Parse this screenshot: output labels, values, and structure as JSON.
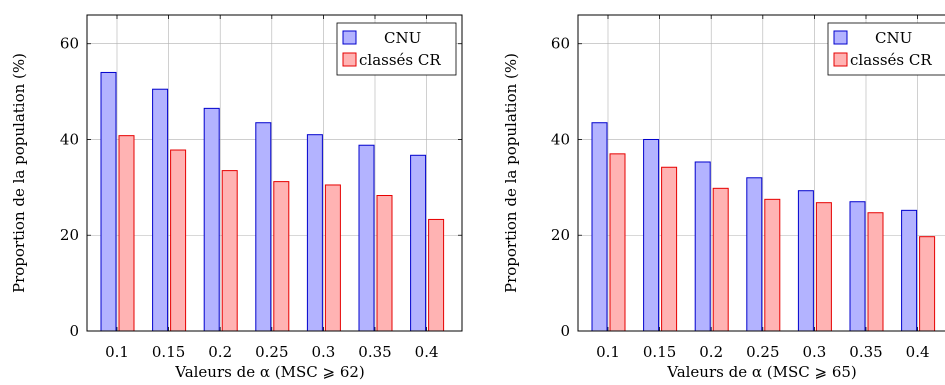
{
  "colors": {
    "cnu_fill": "#b3b3ff",
    "cnu_stroke": "#0000cc",
    "cr_fill": "#ffb3b3",
    "cr_stroke": "#e60000",
    "grid": "#b0b0b0"
  },
  "chart_data": [
    {
      "type": "bar",
      "categories": [
        "0.1",
        "0.15",
        "0.2",
        "0.25",
        "0.3",
        "0.35",
        "0.4"
      ],
      "series": [
        {
          "name": "CNU",
          "values": [
            54,
            50.5,
            46.5,
            43.5,
            41,
            38.8,
            36.7
          ]
        },
        {
          "name": "classés CR",
          "values": [
            40.8,
            37.8,
            33.5,
            31.2,
            30.5,
            28.3,
            23.3
          ]
        }
      ],
      "xlabel": "Valeurs de α (MSC ⩾ 62)",
      "ylabel": "Proportion de la population (%)",
      "ylim": [
        0,
        66
      ],
      "yticks": [
        0,
        20,
        40,
        60
      ],
      "grid": true,
      "legend": "top-right"
    },
    {
      "type": "bar",
      "categories": [
        "0.1",
        "0.15",
        "0.2",
        "0.25",
        "0.3",
        "0.35",
        "0.4"
      ],
      "series": [
        {
          "name": "CNU",
          "values": [
            43.5,
            40,
            35.3,
            32,
            29.3,
            27,
            25.2
          ]
        },
        {
          "name": "classés CR",
          "values": [
            37,
            34.2,
            29.8,
            27.5,
            26.8,
            24.7,
            19.7
          ]
        }
      ],
      "xlabel": "Valeurs de α (MSC ⩾ 65)",
      "ylabel": "Proportion de la population (%)",
      "ylim": [
        0,
        66
      ],
      "yticks": [
        0,
        20,
        40,
        60
      ],
      "grid": true,
      "legend": "top-right"
    }
  ]
}
